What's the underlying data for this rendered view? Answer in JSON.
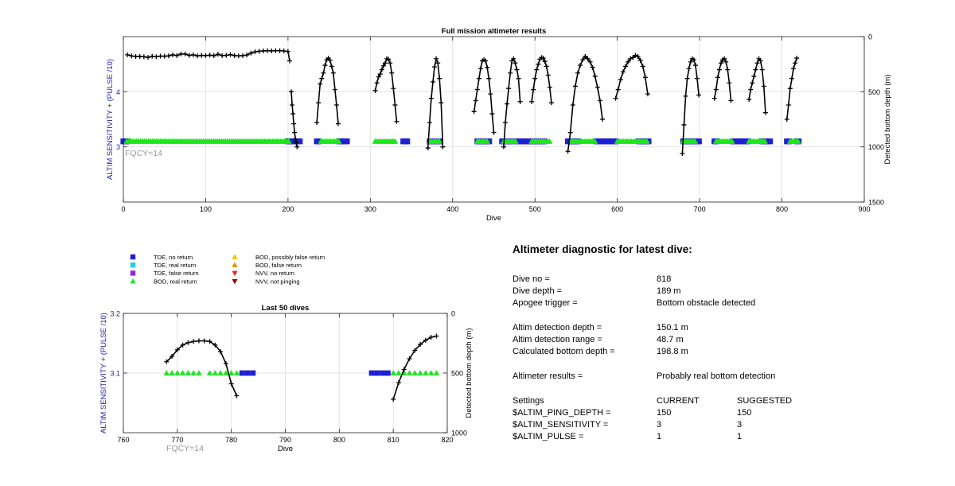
{
  "colors": {
    "tde_no_return": "#1f1fd6",
    "tde_real_return": "#22cde0",
    "tde_false_return": "#8a2be2",
    "bod_real_return": "#1ee61e",
    "bod_possibly_false": "#f2c200",
    "bod_false_return": "#f08a00",
    "nvv_no_return": "#e02a1a",
    "nvv_not_pinging": "#8b0000",
    "depth_line": "#000000",
    "left_axis": "#1f1fa8",
    "fqcy_text": "#999999"
  },
  "legend": [
    {
      "label": "TDE, no return",
      "marker": "square",
      "color_key": "tde_no_return"
    },
    {
      "label": "TDE, real return",
      "marker": "square",
      "color_key": "tde_real_return"
    },
    {
      "label": "TDE, false return",
      "marker": "square",
      "color_key": "tde_false_return"
    },
    {
      "label": "BOD, real return",
      "marker": "triangle-up",
      "color_key": "bod_real_return"
    },
    {
      "label": "BOD, possibly false return",
      "marker": "triangle-up",
      "color_key": "bod_possibly_false"
    },
    {
      "label": "BOD, false return",
      "marker": "triangle-up",
      "color_key": "bod_false_return"
    },
    {
      "label": "NVV, no return",
      "marker": "triangle-down",
      "color_key": "nvv_no_return"
    },
    {
      "label": "NVV, not pinging",
      "marker": "triangle-down",
      "color_key": "nvv_not_pinging"
    }
  ],
  "chart_data": [
    {
      "type": "scatter",
      "title": "Full mission altimeter results",
      "xlabel": "Dive",
      "ylabel": "ALTIM SENSITIVITY + (PULSE /10)",
      "ylabel_right": "Detected bottom depth (m)",
      "annotation": "FQCY=14",
      "xlim": [
        0,
        900
      ],
      "ylim": [
        2,
        5
      ],
      "ylim_right": [
        1500,
        0
      ],
      "x_ticks": [
        0,
        100,
        200,
        300,
        400,
        500,
        600,
        700,
        800,
        900
      ],
      "y_ticks": [
        3,
        4
      ],
      "y_ticks_right": [
        0,
        500,
        1000,
        1500
      ],
      "grid": true,
      "series": [
        {
          "kind": "depth_line",
          "axis": "right",
          "segments": [
            {
              "x": [
                5,
                10,
                15,
                20,
                25,
                30,
                35,
                40,
                45,
                50,
                55,
                60,
                65,
                70,
                75,
                80,
                85,
                90,
                95,
                100,
                105,
                110,
                115,
                120,
                125,
                130,
                135,
                140,
                145,
                150,
                155,
                160,
                165,
                170,
                175,
                180,
                185,
                190,
                195,
                200,
                202
              ],
              "y": [
                165,
                175,
                180,
                180,
                183,
                188,
                178,
                183,
                177,
                178,
                175,
                165,
                172,
                158,
                158,
                170,
                165,
                175,
                170,
                172,
                168,
                173,
                160,
                172,
                170,
                163,
                172,
                175,
                172,
                167,
                150,
                138,
                133,
                130,
                128,
                130,
                128,
                128,
                130,
                135,
                220
              ]
            },
            {
              "x": [
                204,
                205,
                206,
                207,
                208,
                209,
                210,
                211
              ],
              "y": [
                500,
                620,
                700,
                790,
                870,
                930,
                960,
                1000
              ]
            },
            {
              "x": [
                235,
                237,
                239,
                241,
                243,
                245,
                247,
                249,
                251,
                253,
                255,
                257,
                259,
                261
              ],
              "y": [
                780,
                600,
                430,
                380,
                330,
                260,
                210,
                195,
                215,
                270,
                330,
                480,
                620,
                790
              ]
            },
            {
              "x": [
                306,
                308,
                310,
                312,
                314,
                316,
                318,
                320,
                322,
                324,
                326,
                328,
                330,
                332
              ],
              "y": [
                490,
                420,
                365,
                340,
                300,
                265,
                240,
                200,
                205,
                240,
                330,
                470,
                620,
                770
              ]
            },
            {
              "x": [
                370,
                372,
                374,
                376,
                378,
                380,
                382,
                384,
                386,
                388
              ],
              "y": [
                1010,
                780,
                560,
                410,
                275,
                200,
                240,
                380,
                600,
                1000
              ]
            },
            {
              "x": [
                426,
                428,
                430,
                432,
                434,
                436,
                438,
                440,
                442,
                444,
                446,
                448,
                450
              ],
              "y": [
                680,
                580,
                480,
                380,
                290,
                220,
                210,
                220,
                280,
                380,
                520,
                700,
                870
              ]
            },
            {
              "x": [
                462,
                464,
                466,
                468,
                470,
                472,
                474,
                476,
                478,
                480,
                482
              ],
              "y": [
                1000,
                780,
                610,
                470,
                330,
                220,
                200,
                240,
                300,
                380,
                590
              ]
            },
            {
              "x": [
                496,
                498,
                500,
                502,
                504,
                506,
                508,
                510,
                512,
                514,
                516,
                518,
                520
              ],
              "y": [
                590,
                480,
                380,
                300,
                250,
                205,
                190,
                195,
                225,
                270,
                350,
                460,
                600
              ]
            },
            {
              "x": [
                540,
                543,
                546,
                549,
                552,
                555,
                558,
                561,
                564,
                567,
                570,
                573,
                576,
                579,
                582
              ],
              "y": [
                1040,
                870,
                620,
                450,
                330,
                260,
                210,
                180,
                200,
                230,
                280,
                360,
                460,
                580,
                750
              ]
            },
            {
              "x": [
                598,
                601,
                604,
                607,
                610,
                613,
                616,
                619,
                622,
                625,
                628,
                631,
                634,
                637
              ],
              "y": [
                560,
                480,
                390,
                320,
                270,
                230,
                200,
                190,
                170,
                180,
                215,
                270,
                370,
                520
              ]
            },
            {
              "x": [
                679,
                681,
                683,
                685,
                687,
                689,
                691,
                693,
                695,
                697,
                699
              ],
              "y": [
                1060,
                800,
                540,
                380,
                290,
                230,
                200,
                210,
                260,
                380,
                530
              ]
            },
            {
              "x": [
                718,
                720,
                722,
                724,
                726,
                728,
                730,
                732,
                734,
                736,
                738
              ],
              "y": [
                560,
                480,
                370,
                300,
                240,
                210,
                200,
                230,
                300,
                420,
                580
              ]
            },
            {
              "x": [
                760,
                762,
                764,
                766,
                768,
                770,
                772,
                774,
                776,
                778,
                780
              ],
              "y": [
                570,
                480,
                420,
                360,
                300,
                240,
                200,
                220,
                300,
                450,
                690
              ]
            },
            {
              "x": [
                806,
                808,
                810,
                812,
                814,
                816,
                818
              ],
              "y": [
                750,
                620,
                470,
                380,
                290,
                240,
                195
              ]
            }
          ]
        },
        {
          "kind": "markers",
          "marker": "square",
          "color_key": "tde_no_return",
          "axis": "left",
          "y": 3.1,
          "ranges": [
            [
              0,
              6
            ],
            [
              200,
              216
            ],
            [
              235,
              238
            ],
            [
              262,
              272
            ],
            [
              340,
              345
            ],
            [
              372,
              386
            ],
            [
              430,
              446
            ],
            [
              460,
              472
            ],
            [
              478,
              490
            ],
            [
              492,
              512
            ],
            [
              540,
              552
            ],
            [
              574,
              600
            ],
            [
              626,
              640
            ],
            [
              680,
              700
            ],
            [
              718,
              722
            ],
            [
              740,
              752
            ],
            [
              754,
              760
            ],
            [
              776,
              786
            ],
            [
              806,
              810
            ],
            [
              818,
              822
            ]
          ]
        },
        {
          "kind": "markers",
          "marker": "triangle-up",
          "color_key": "bod_real_return",
          "axis": "left",
          "y": 3.1,
          "ranges": [
            [
              4,
              202
            ],
            [
              240,
              262
            ],
            [
              306,
              332
            ],
            [
              372,
              386
            ],
            [
              430,
              444
            ],
            [
              462,
              478
            ],
            [
              496,
              518
            ],
            [
              544,
              574
            ],
            [
              600,
              638
            ],
            [
              680,
              696
            ],
            [
              720,
              740
            ],
            [
              760,
              780
            ],
            [
              810,
              820
            ]
          ]
        }
      ]
    },
    {
      "type": "scatter",
      "title": "Last 50 dives",
      "xlabel": "Dive",
      "ylabel": "ALTIM SENSITIVITY + (PULSE /10)",
      "ylabel_right": "Detected bottom depth (m)",
      "annotation": "FQCY=14",
      "xlim": [
        760,
        820
      ],
      "ylim": [
        3.0,
        3.2
      ],
      "ylim_right": [
        1000,
        0
      ],
      "x_ticks": [
        760,
        770,
        780,
        790,
        800,
        810,
        820
      ],
      "y_ticks": [
        3.1,
        3.2
      ],
      "y_ticks_right": [
        0,
        500,
        1000
      ],
      "grid": true,
      "series": [
        {
          "kind": "depth_line",
          "axis": "right",
          "segments": [
            {
              "x": [
                768,
                769,
                770,
                771,
                772,
                773,
                774,
                775,
                776,
                777,
                778,
                779,
                780,
                781
              ],
              "y": [
                405,
                360,
                305,
                265,
                245,
                235,
                230,
                230,
                235,
                265,
                320,
                420,
                590,
                690
              ]
            },
            {
              "x": [
                810,
                811,
                812,
                813,
                814,
                815,
                816,
                817,
                818
              ],
              "y": [
                720,
                580,
                470,
                380,
                310,
                260,
                225,
                200,
                190
              ]
            }
          ]
        },
        {
          "kind": "markers",
          "marker": "triangle-up",
          "color_key": "bod_real_return",
          "axis": "left",
          "y": 3.1,
          "x": [
            768,
            769,
            770,
            771,
            772,
            773,
            774,
            776,
            777,
            778,
            779,
            780,
            781,
            810,
            811,
            812,
            813,
            814,
            815,
            816,
            817,
            818
          ]
        },
        {
          "kind": "markers",
          "marker": "square",
          "color_key": "tde_no_return",
          "axis": "left",
          "y": 3.1,
          "x": [
            782,
            783,
            784,
            806,
            807,
            808,
            809
          ]
        }
      ]
    }
  ],
  "diagnostic": {
    "title": "Altimeter diagnostic for latest dive:",
    "rows": [
      {
        "label": "Dive no =",
        "value": "818"
      },
      {
        "label": "Dive depth =",
        "value": "189 m"
      },
      {
        "label": "Apogee trigger =",
        "value": "Bottom obstacle detected"
      },
      {
        "label": "Altim detection depth =",
        "value": "150.1 m"
      },
      {
        "label": "Altim detection range =",
        "value": "48.7 m"
      },
      {
        "label": "Calculated bottom depth =",
        "value": "198.8 m"
      },
      {
        "label": "Altimeter results =",
        "value": "Probably real bottom detection"
      }
    ],
    "settings": {
      "header": {
        "label": "Settings",
        "current": "CURRENT",
        "suggested": "SUGGESTED"
      },
      "rows": [
        {
          "label": "$ALTIM_PING_DEPTH =",
          "current": "150",
          "suggested": "150"
        },
        {
          "label": "$ALTIM_SENSITIVITY =",
          "current": "3",
          "suggested": "3"
        },
        {
          "label": "$ALTIM_PULSE =",
          "current": "1",
          "suggested": "1"
        }
      ]
    }
  }
}
